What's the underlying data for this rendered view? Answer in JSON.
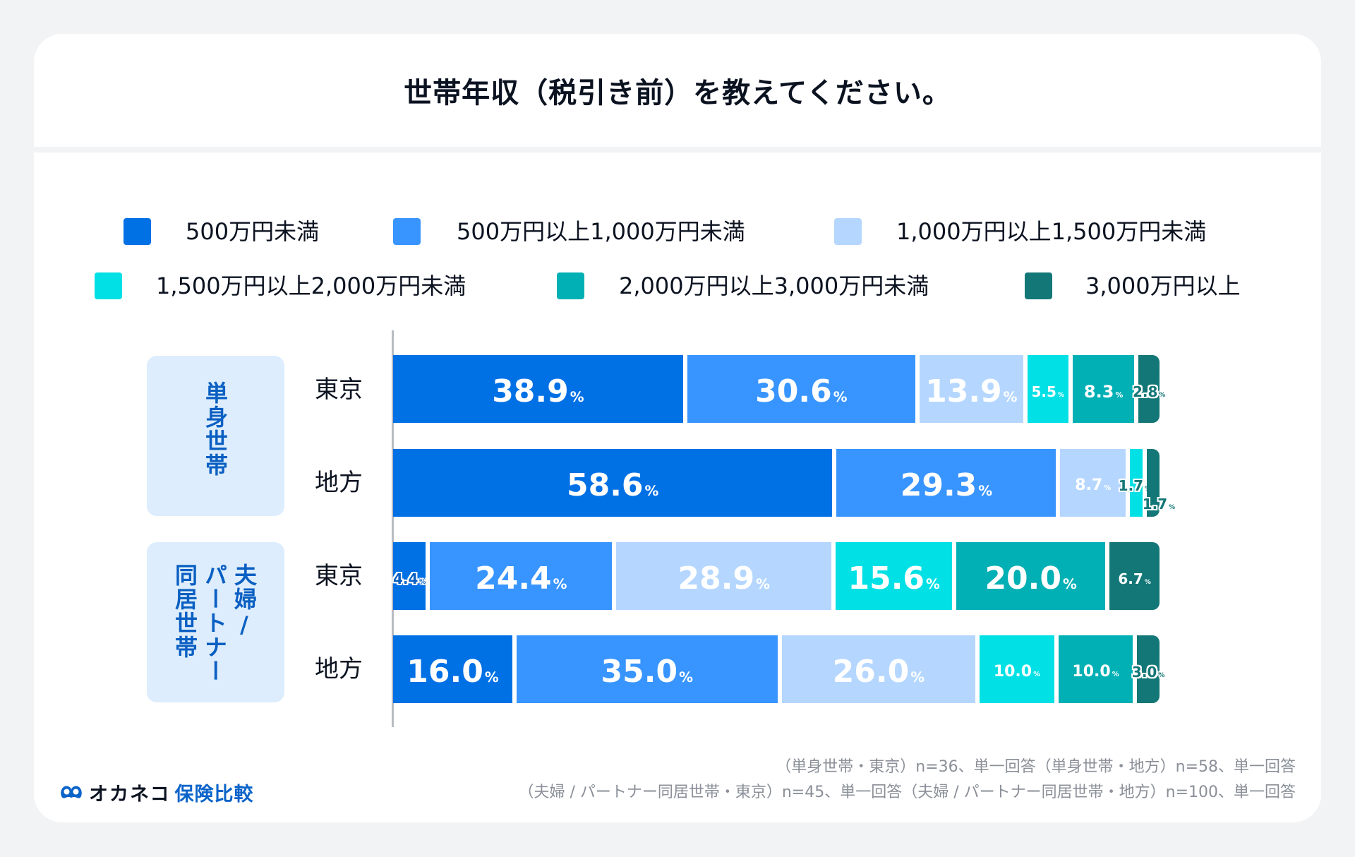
{
  "title": "世帯年収（税引き前）を教えてください。",
  "chart_data": {
    "type": "bar",
    "orientation": "horizontal-stacked-100",
    "title": "世帯年収（税引き前）を教えてください。",
    "xlabel": "",
    "ylabel": "",
    "xlim": [
      0,
      100
    ],
    "unit": "%",
    "legend_position": "top",
    "series": [
      {
        "name": "500万円未満",
        "color": "#0070E5"
      },
      {
        "name": "500万円以上1,000万円未満",
        "color": "#3895FF"
      },
      {
        "name": "1,000万円以上1,500万円未満",
        "color": "#B5D7FF"
      },
      {
        "name": "1,500万円以上2,000万円未満",
        "color": "#00E0E5"
      },
      {
        "name": "2,000万円以上3,000万円未満",
        "color": "#00B0B4"
      },
      {
        "name": "3,000万円以上",
        "color": "#147777"
      }
    ],
    "groups": [
      {
        "label": "単身世帯",
        "label_columns": [
          "単身世帯"
        ]
      },
      {
        "label": "夫婦 / パートナー同居世帯",
        "label_columns": [
          "夫婦 /",
          "パートナー",
          "同居世帯"
        ]
      }
    ],
    "rows": [
      {
        "group": 0,
        "label": "東京",
        "values": [
          38.9,
          30.6,
          13.9,
          5.5,
          8.3,
          2.8
        ],
        "labels": [
          "38.9",
          "30.6",
          "13.9",
          "5.5",
          "8.3",
          "2.8"
        ]
      },
      {
        "group": 0,
        "label": "地方",
        "values": [
          58.6,
          29.3,
          8.7,
          1.7,
          0,
          1.7
        ],
        "labels": [
          "58.6",
          "29.3",
          "8.7",
          "1.7",
          "",
          "1.7"
        ]
      },
      {
        "group": 1,
        "label": "東京",
        "values": [
          4.4,
          24.4,
          28.9,
          15.6,
          20.0,
          6.7
        ],
        "labels": [
          "4.4",
          "24.4",
          "28.9",
          "15.6",
          "20.0",
          "6.7"
        ]
      },
      {
        "group": 1,
        "label": "地方",
        "values": [
          16.0,
          35.0,
          26.0,
          10.0,
          10.0,
          3.0
        ],
        "labels": [
          "16.0",
          "35.0",
          "26.0",
          "10.0",
          "10.0",
          "3.0"
        ]
      }
    ],
    "percent_sign": "%"
  },
  "legend": [
    "500万円未満",
    "500万円以上1,000万円未満",
    "1,000万円以上1,500万円未満",
    "1,500万円以上2,000万円未満",
    "2,000万円以上3,000万円未満",
    "3,000万円以上"
  ],
  "group_labels": {
    "single": "単身世帯",
    "couple_col1": "夫婦",
    "couple_slash": "/",
    "couple_col2": "パートナー",
    "couple_col3": "同居世帯"
  },
  "row_labels": [
    "東京",
    "地方",
    "東京",
    "地方"
  ],
  "footnotes": [
    "（単身世帯・東京）n=36、単一回答（単身世帯・地方）n=58、単一回答",
    "（夫婦 / パートナー同居世帯・東京）n=45、単一回答（夫婦 / パートナー同居世帯・地方）n=100、単一回答"
  ],
  "logo": {
    "main": "オカネコ",
    "sub": "保険比較",
    "icon": "mascot-icon",
    "color": "#0A63C9"
  }
}
